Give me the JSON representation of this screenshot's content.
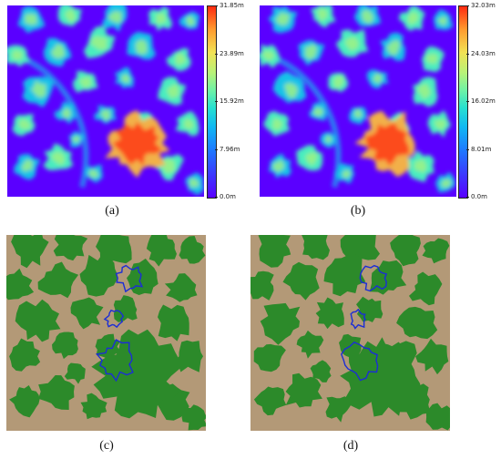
{
  "panels": {
    "a": {
      "caption": "(a)",
      "colorbar_ticks": [
        "31.85m",
        "23.89m",
        "15.92m",
        "7.96m",
        "0.0m"
      ]
    },
    "b": {
      "caption": "(b)",
      "colorbar_ticks": [
        "32.03m",
        "24.03m",
        "16.02m",
        "8.01m",
        "0.0m"
      ]
    },
    "c": {
      "caption": "(c)"
    },
    "d": {
      "caption": "(d)"
    }
  },
  "colors": {
    "canopy_low": "#5a00ff",
    "canopy_high": "#ff2a10",
    "ground": "#b39977",
    "tree": "#2c8a2a",
    "outline": "#1b2dd6"
  }
}
